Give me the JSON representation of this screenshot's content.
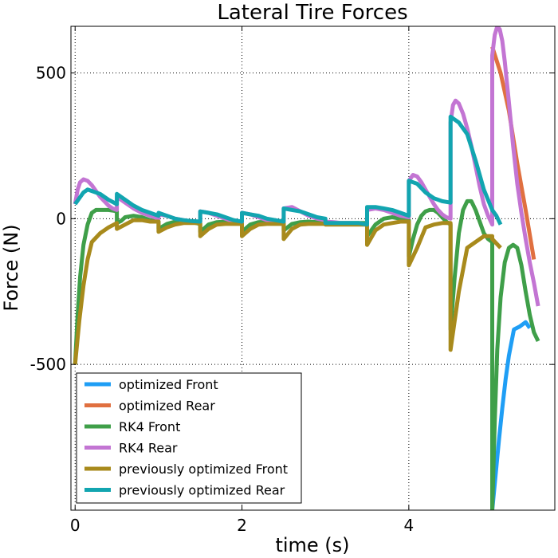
{
  "chart_data": {
    "type": "line",
    "title": "Lateral Tire Forces",
    "xlabel": "time (s)",
    "ylabel": "Force (N)",
    "xlim": [
      -0.05,
      5.75
    ],
    "ylim": [
      -1000,
      660
    ],
    "xticks": [
      0,
      2,
      4
    ],
    "xtick_labels": [
      "0",
      "2",
      "4"
    ],
    "yticks": [
      -500,
      0,
      500
    ],
    "ytick_labels": [
      "-500",
      "0",
      "500"
    ],
    "grid": true,
    "legend_position": "lower-left",
    "series": [
      {
        "name": "optimized Front",
        "color": "#1f9ef5",
        "x": [
          5.0,
          5.04,
          5.08,
          5.12,
          5.16,
          5.2,
          5.26,
          5.33,
          5.4,
          5.45
        ],
        "y": [
          -1000,
          -880,
          -760,
          -650,
          -550,
          -470,
          -380,
          -370,
          -355,
          -375
        ]
      },
      {
        "name": "optimized Rear",
        "color": "#e07040",
        "x": [
          5.0,
          5.1,
          5.2,
          5.3,
          5.4,
          5.5
        ],
        "y": [
          590,
          500,
          370,
          190,
          30,
          -140
        ]
      },
      {
        "name": "RK4 Front",
        "color": "#3f9f49",
        "x": [
          0.0,
          0.03,
          0.06,
          0.1,
          0.15,
          0.2,
          0.25,
          0.3,
          0.35,
          0.4,
          0.45,
          0.5,
          0.5,
          0.55,
          0.6,
          0.7,
          0.8,
          0.9,
          1.0,
          1.0,
          1.1,
          1.2,
          1.3,
          1.4,
          1.5,
          1.5,
          1.6,
          1.7,
          1.8,
          1.9,
          2.0,
          2.0,
          2.1,
          2.2,
          2.3,
          2.4,
          2.5,
          2.5,
          2.6,
          2.7,
          2.8,
          2.9,
          3.0,
          3.0,
          3.1,
          3.2,
          3.3,
          3.4,
          3.5,
          3.5,
          3.6,
          3.7,
          3.8,
          3.9,
          4.0,
          4.0,
          4.05,
          4.1,
          4.15,
          4.2,
          4.25,
          4.3,
          4.35,
          4.4,
          4.45,
          4.5,
          4.5,
          4.55,
          4.6,
          4.65,
          4.7,
          4.75,
          4.8,
          4.85,
          4.9,
          4.95,
          5.0,
          5.0,
          5.03,
          5.06,
          5.1,
          5.15,
          5.2,
          5.25,
          5.3,
          5.35,
          5.4,
          5.45,
          5.5,
          5.55
        ],
        "y": [
          -500,
          -330,
          -200,
          -90,
          -20,
          20,
          30,
          30,
          30,
          30,
          28,
          25,
          -15,
          -8,
          5,
          10,
          5,
          -5,
          -10,
          -35,
          -18,
          -10,
          -10,
          -12,
          -18,
          -45,
          -20,
          -12,
          -10,
          -12,
          -18,
          -45,
          -20,
          -12,
          -10,
          -12,
          -15,
          -40,
          -18,
          -12,
          -10,
          -12,
          -15,
          -15,
          -15,
          -15,
          -15,
          -15,
          -15,
          -60,
          -20,
          0,
          5,
          0,
          -5,
          -130,
          -70,
          -20,
          10,
          25,
          30,
          30,
          20,
          5,
          -10,
          -20,
          -380,
          -200,
          -50,
          30,
          60,
          60,
          30,
          -10,
          -50,
          -70,
          -80,
          -1000,
          -700,
          -450,
          -270,
          -150,
          -100,
          -90,
          -100,
          -160,
          -250,
          -330,
          -390,
          -420
        ]
      },
      {
        "name": "RK4 Rear",
        "color": "#c375d3",
        "x": [
          0.0,
          0.03,
          0.06,
          0.1,
          0.15,
          0.2,
          0.25,
          0.3,
          0.35,
          0.4,
          0.45,
          0.5,
          0.5,
          0.6,
          0.7,
          0.8,
          0.9,
          1.0,
          1.0,
          1.1,
          1.2,
          1.3,
          1.4,
          1.5,
          1.5,
          1.6,
          1.7,
          1.8,
          1.9,
          2.0,
          2.0,
          2.1,
          2.2,
          2.3,
          2.4,
          2.5,
          2.5,
          2.6,
          2.7,
          2.8,
          2.9,
          3.0,
          3.0,
          3.1,
          3.2,
          3.3,
          3.4,
          3.5,
          3.5,
          3.6,
          3.7,
          3.8,
          3.9,
          4.0,
          4.0,
          4.05,
          4.1,
          4.15,
          4.2,
          4.25,
          4.3,
          4.35,
          4.4,
          4.45,
          4.5,
          4.5,
          4.53,
          4.56,
          4.6,
          4.65,
          4.7,
          4.75,
          4.8,
          4.85,
          4.9,
          4.95,
          5.0,
          5.0,
          5.03,
          5.06,
          5.09,
          5.12,
          5.15,
          5.2,
          5.25,
          5.3,
          5.35,
          5.4,
          5.45,
          5.5,
          5.55
        ],
        "y": [
          50,
          100,
          125,
          135,
          130,
          115,
          95,
          75,
          60,
          45,
          35,
          30,
          75,
          55,
          35,
          20,
          10,
          0,
          15,
          10,
          0,
          -5,
          -10,
          -10,
          25,
          20,
          10,
          0,
          -10,
          -15,
          20,
          15,
          5,
          -5,
          -10,
          -12,
          35,
          40,
          25,
          10,
          0,
          -5,
          -10,
          -12,
          -15,
          -15,
          -18,
          -20,
          30,
          35,
          30,
          20,
          10,
          5,
          130,
          150,
          145,
          125,
          100,
          75,
          50,
          30,
          15,
          5,
          0,
          330,
          390,
          405,
          395,
          360,
          310,
          250,
          180,
          110,
          50,
          10,
          -20,
          560,
          630,
          660,
          650,
          610,
          540,
          400,
          250,
          120,
          20,
          -70,
          -150,
          -220,
          -300
        ]
      },
      {
        "name": "previously optimized Front",
        "color": "#a88a1c",
        "x": [
          0.0,
          0.05,
          0.1,
          0.15,
          0.2,
          0.3,
          0.4,
          0.5,
          0.5,
          0.6,
          0.7,
          0.8,
          0.9,
          1.0,
          1.0,
          1.1,
          1.2,
          1.3,
          1.4,
          1.5,
          1.5,
          1.6,
          1.7,
          1.8,
          1.9,
          2.0,
          2.0,
          2.1,
          2.2,
          2.3,
          2.4,
          2.5,
          2.5,
          2.6,
          2.7,
          2.8,
          2.9,
          3.0,
          3.0,
          3.1,
          3.2,
          3.3,
          3.4,
          3.5,
          3.5,
          3.6,
          3.7,
          3.8,
          3.9,
          4.0,
          4.0,
          4.1,
          4.2,
          4.3,
          4.4,
          4.5,
          4.5,
          4.6,
          4.7,
          4.8,
          4.9,
          5.0,
          5.0,
          5.1
        ],
        "y": [
          -500,
          -350,
          -230,
          -140,
          -80,
          -50,
          -30,
          -15,
          -35,
          -20,
          -5,
          -5,
          -10,
          -10,
          -45,
          -30,
          -20,
          -15,
          -15,
          -15,
          -60,
          -35,
          -20,
          -18,
          -18,
          -18,
          -60,
          -35,
          -20,
          -18,
          -18,
          -18,
          -70,
          -35,
          -20,
          -18,
          -18,
          -18,
          -20,
          -20,
          -20,
          -20,
          -20,
          -20,
          -90,
          -40,
          -20,
          -15,
          -10,
          -10,
          -160,
          -100,
          -30,
          -20,
          -15,
          -15,
          -450,
          -250,
          -100,
          -80,
          -60,
          -60,
          -70,
          -100
        ]
      },
      {
        "name": "previously optimized Rear",
        "color": "#12a5b0",
        "x": [
          0.0,
          0.05,
          0.1,
          0.15,
          0.2,
          0.3,
          0.4,
          0.5,
          0.5,
          0.6,
          0.7,
          0.8,
          0.9,
          1.0,
          1.0,
          1.1,
          1.2,
          1.3,
          1.4,
          1.5,
          1.5,
          1.6,
          1.7,
          1.8,
          1.9,
          2.0,
          2.0,
          2.1,
          2.2,
          2.3,
          2.4,
          2.5,
          2.5,
          2.6,
          2.7,
          2.8,
          2.9,
          3.0,
          3.0,
          3.1,
          3.2,
          3.3,
          3.4,
          3.5,
          3.5,
          3.6,
          3.7,
          3.8,
          3.9,
          4.0,
          4.0,
          4.1,
          4.2,
          4.3,
          4.4,
          4.5,
          4.5,
          4.6,
          4.7,
          4.8,
          4.9,
          5.0,
          5.0,
          5.05,
          5.1
        ],
        "y": [
          50,
          70,
          90,
          100,
          95,
          85,
          65,
          50,
          85,
          65,
          45,
          30,
          20,
          10,
          20,
          10,
          0,
          -5,
          -8,
          -10,
          25,
          20,
          15,
          5,
          -5,
          -10,
          20,
          15,
          10,
          0,
          -5,
          -10,
          35,
          30,
          25,
          15,
          5,
          0,
          -15,
          -15,
          -15,
          -15,
          -15,
          -20,
          40,
          40,
          35,
          30,
          20,
          10,
          130,
          120,
          90,
          70,
          60,
          55,
          350,
          330,
          290,
          200,
          100,
          30,
          30,
          10,
          -20
        ]
      }
    ]
  }
}
